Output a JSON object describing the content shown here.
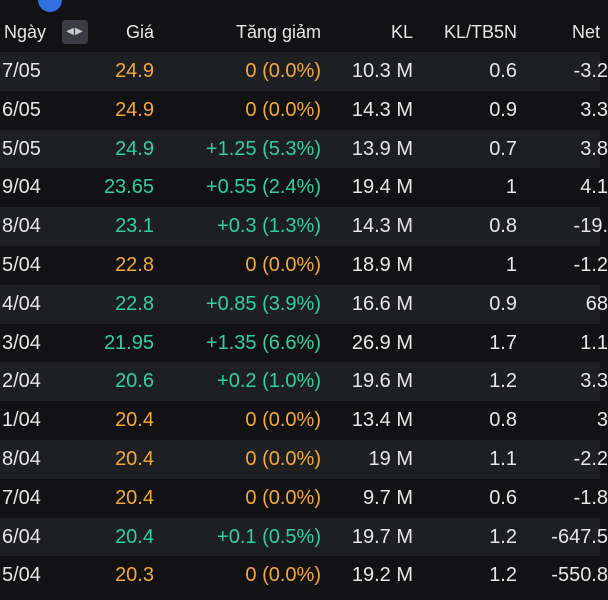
{
  "header": {
    "date": "Ngày",
    "price": "Giá",
    "change": "Tăng giảm",
    "volume": "KL",
    "ratio": "KL/TB5N",
    "net": "Net",
    "sort_arrows": "◀▶"
  },
  "colors": {
    "unchanged": "#f2a93b",
    "up": "#2fd0a0",
    "text": "#e6e6e6",
    "background": "#121214",
    "row_alt": "#1e1f23"
  },
  "rows": [
    {
      "date": "7/05",
      "price": "24.9",
      "change": "0 (0.0%)",
      "volume": "10.3 M",
      "ratio": "0.6",
      "net": "-3.2",
      "trend": "y"
    },
    {
      "date": "6/05",
      "price": "24.9",
      "change": "0 (0.0%)",
      "volume": "14.3 M",
      "ratio": "0.9",
      "net": "3.3",
      "trend": "y"
    },
    {
      "date": "5/05",
      "price": "24.9",
      "change": "+1.25 (5.3%)",
      "volume": "13.9 M",
      "ratio": "0.7",
      "net": "3.8",
      "trend": "g"
    },
    {
      "date": "9/04",
      "price": "23.65",
      "change": "+0.55 (2.4%)",
      "volume": "19.4 M",
      "ratio": "1",
      "net": "4.1",
      "trend": "g"
    },
    {
      "date": "8/04",
      "price": "23.1",
      "change": "+0.3 (1.3%)",
      "volume": "14.3 M",
      "ratio": "0.8",
      "net": "-19.",
      "trend": "g"
    },
    {
      "date": "5/04",
      "price": "22.8",
      "change": "0 (0.0%)",
      "volume": "18.9 M",
      "ratio": "1",
      "net": "-1.2",
      "trend": "y"
    },
    {
      "date": "4/04",
      "price": "22.8",
      "change": "+0.85 (3.9%)",
      "volume": "16.6 M",
      "ratio": "0.9",
      "net": "68",
      "trend": "g"
    },
    {
      "date": "3/04",
      "price": "21.95",
      "change": "+1.35 (6.6%)",
      "volume": "26.9 M",
      "ratio": "1.7",
      "net": "1.1",
      "trend": "g"
    },
    {
      "date": "2/04",
      "price": "20.6",
      "change": "+0.2 (1.0%)",
      "volume": "19.6 M",
      "ratio": "1.2",
      "net": "3.3",
      "trend": "g"
    },
    {
      "date": "1/04",
      "price": "20.4",
      "change": "0 (0.0%)",
      "volume": "13.4 M",
      "ratio": "0.8",
      "net": "3",
      "trend": "y"
    },
    {
      "date": "8/04",
      "price": "20.4",
      "change": "0 (0.0%)",
      "volume": "19 M",
      "ratio": "1.1",
      "net": "-2.2",
      "trend": "y"
    },
    {
      "date": "7/04",
      "price": "20.4",
      "change": "0 (0.0%)",
      "volume": "9.7 M",
      "ratio": "0.6",
      "net": "-1.8",
      "trend": "y"
    },
    {
      "date": "6/04",
      "price": "20.4",
      "change": "+0.1 (0.5%)",
      "volume": "19.7 M",
      "ratio": "1.2",
      "net": "-647.5",
      "trend": "g"
    },
    {
      "date": "5/04",
      "price": "20.3",
      "change": "0 (0.0%)",
      "volume": "19.2 M",
      "ratio": "1.2",
      "net": "-550.8",
      "trend": "y"
    }
  ]
}
